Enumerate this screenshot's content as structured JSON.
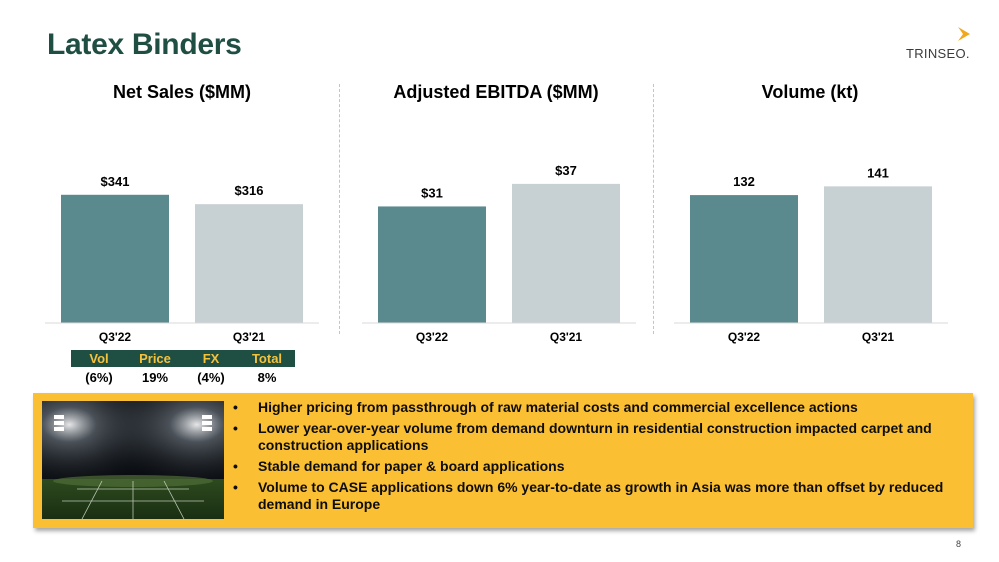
{
  "title": "Latex Binders",
  "logo": {
    "text": "TRINSEO."
  },
  "colors": {
    "primary_bar": "#5b8a8e",
    "secondary_bar": "#c7d0d2",
    "title": "#1f4e43",
    "accent": "#fbbf34"
  },
  "chart_data": [
    {
      "type": "bar",
      "title": "Net Sales ($MM)",
      "categories": [
        "Q3'22",
        "Q3'21"
      ],
      "values": [
        341,
        316
      ],
      "value_labels": [
        "$341",
        "$316"
      ],
      "ylim": [
        0,
        500
      ],
      "grid": false
    },
    {
      "type": "bar",
      "title": "Adjusted EBITDA ($MM)",
      "categories": [
        "Q3'22",
        "Q3'21"
      ],
      "values": [
        31,
        37
      ],
      "value_labels": [
        "$31",
        "$37"
      ],
      "ylim": [
        0,
        50
      ],
      "grid": false
    },
    {
      "type": "bar",
      "title": "Volume (kt)",
      "categories": [
        "Q3'22",
        "Q3'21"
      ],
      "values": [
        132,
        141
      ],
      "value_labels": [
        "132",
        "141"
      ],
      "ylim": [
        0,
        194
      ],
      "grid": false
    }
  ],
  "bridge": {
    "headers": [
      "Vol",
      "Price",
      "FX",
      "Total"
    ],
    "values": [
      "(6%)",
      "19%",
      "(4%)",
      "8%"
    ]
  },
  "bullets": [
    "Higher pricing from passthrough of raw material costs and commercial excellence actions",
    "Lower year-over-year volume from demand downturn in residential construction impacted carpet and construction applications",
    "Stable demand for paper & board applications",
    "Volume to CASE applications down 6% year-to-date as growth in Asia was more than offset by reduced demand in Europe"
  ],
  "bullet_symbol": "•",
  "page_number": "8"
}
